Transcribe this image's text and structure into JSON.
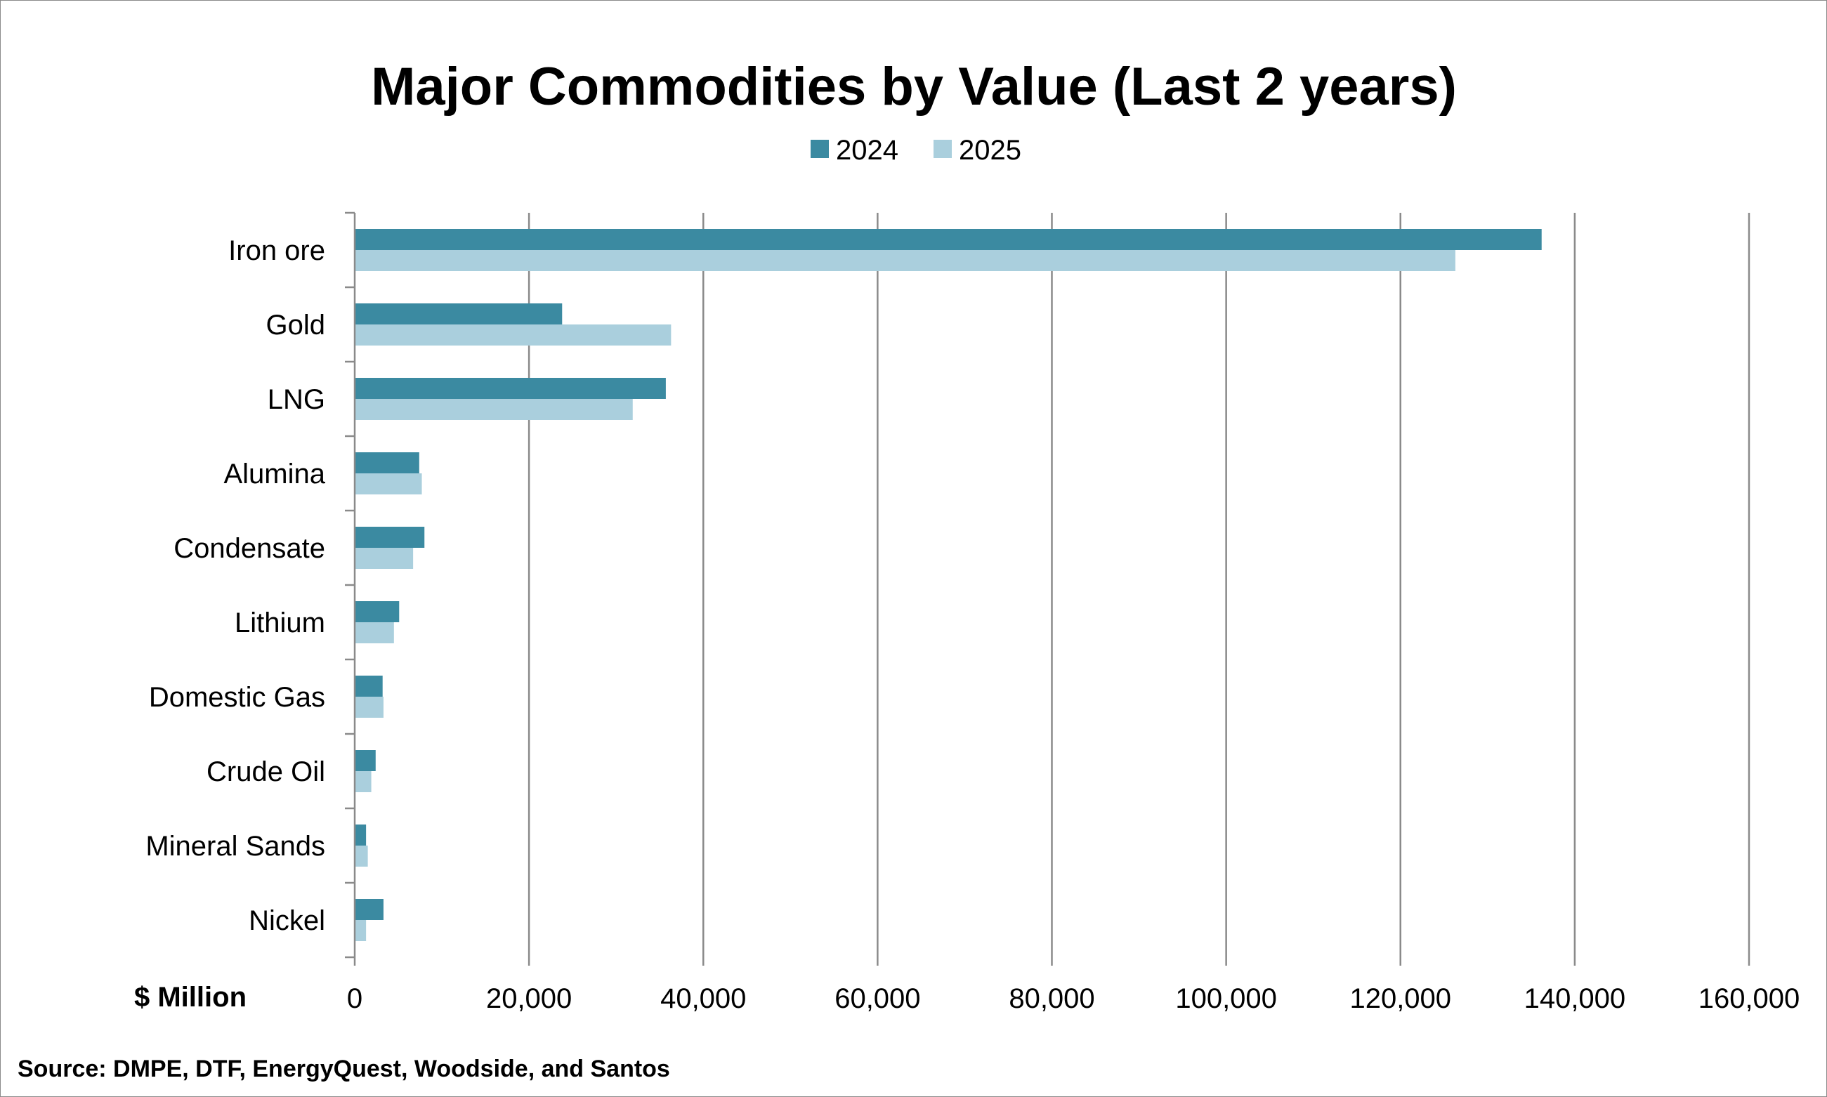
{
  "chart_data": {
    "type": "bar",
    "orientation": "horizontal",
    "title": "Major Commodities by Value (Last 2 years)",
    "xlabel": "$ Million",
    "source": "Source:  DMPE, DTF, EnergyQuest, Woodside, and Santos",
    "categories": [
      "Iron ore",
      "Gold",
      "LNG",
      "Alumina",
      "Condensate",
      "Lithium",
      "Domestic Gas",
      "Crude Oil",
      "Mineral Sands",
      "Nickel"
    ],
    "series": [
      {
        "name": "2024",
        "color": "#3b8aa1",
        "values": [
          136200,
          23800,
          35700,
          7400,
          8000,
          5100,
          3200,
          2400,
          1300,
          3300
        ]
      },
      {
        "name": "2025",
        "color": "#aacfdd",
        "values": [
          126300,
          36300,
          31900,
          7700,
          6700,
          4500,
          3300,
          1900,
          1500,
          1300
        ]
      }
    ],
    "xlim": [
      0,
      160000
    ],
    "x_ticks": [
      "0",
      "20,000",
      "40,000",
      "60,000",
      "80,000",
      "100,000",
      "120,000",
      "140,000",
      "160,000"
    ],
    "x_tick_values": [
      0,
      20000,
      40000,
      60000,
      80000,
      100000,
      120000,
      140000,
      160000
    ],
    "grid": "vertical",
    "legend": "top-center"
  }
}
